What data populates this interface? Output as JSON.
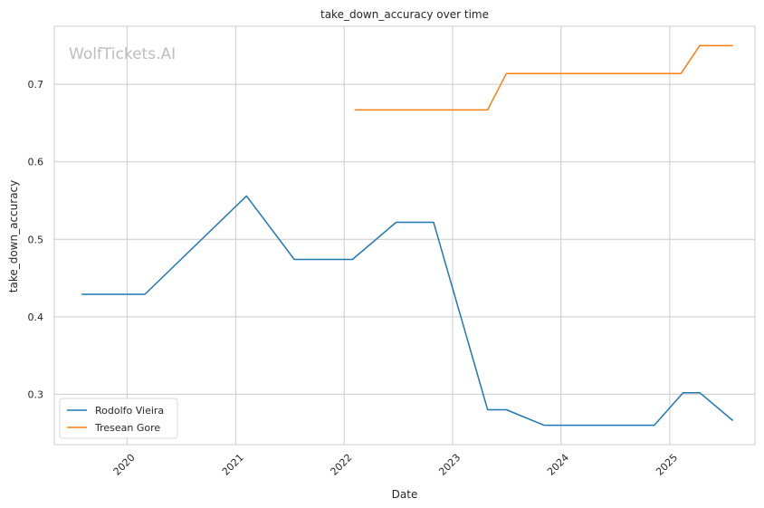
{
  "chart_data": {
    "type": "line",
    "title": "take_down_accuracy over time",
    "xlabel": "Date",
    "ylabel": "take_down_accuracy",
    "watermark": "WolfTickets.AI",
    "x_ticks": [
      "2020",
      "2021",
      "2022",
      "2023",
      "2024",
      "2025"
    ],
    "y_ticks": [
      "0.3",
      "0.4",
      "0.5",
      "0.6",
      "0.7"
    ],
    "xlim": [
      "2019-05-01",
      "2025-10-15"
    ],
    "ylim": [
      0.235,
      0.775
    ],
    "grid": true,
    "legend_position": "lower-left",
    "series": [
      {
        "name": "Rodolfo Vieira",
        "color": "#1f77b4",
        "points": [
          [
            "2019-08-01",
            0.429
          ],
          [
            "2020-03-01",
            0.429
          ],
          [
            "2021-02-06",
            0.556
          ],
          [
            "2021-07-17",
            0.474
          ],
          [
            "2022-01-29",
            0.474
          ],
          [
            "2022-06-25",
            0.522
          ],
          [
            "2022-10-29",
            0.522
          ],
          [
            "2023-04-29",
            0.28
          ],
          [
            "2023-07-01",
            0.28
          ],
          [
            "2023-11-05",
            0.26
          ],
          [
            "2024-11-10",
            0.26
          ],
          [
            "2025-02-15",
            0.302
          ],
          [
            "2025-04-12",
            0.302
          ],
          [
            "2025-08-02",
            0.266
          ]
        ]
      },
      {
        "name": "Tresean Gore",
        "color": "#ff7f0e",
        "points": [
          [
            "2022-02-05",
            0.667
          ],
          [
            "2023-04-29",
            0.667
          ],
          [
            "2023-07-01",
            0.714
          ],
          [
            "2025-02-08",
            0.714
          ],
          [
            "2025-04-12",
            0.75
          ],
          [
            "2025-08-02",
            0.75
          ]
        ]
      }
    ]
  }
}
